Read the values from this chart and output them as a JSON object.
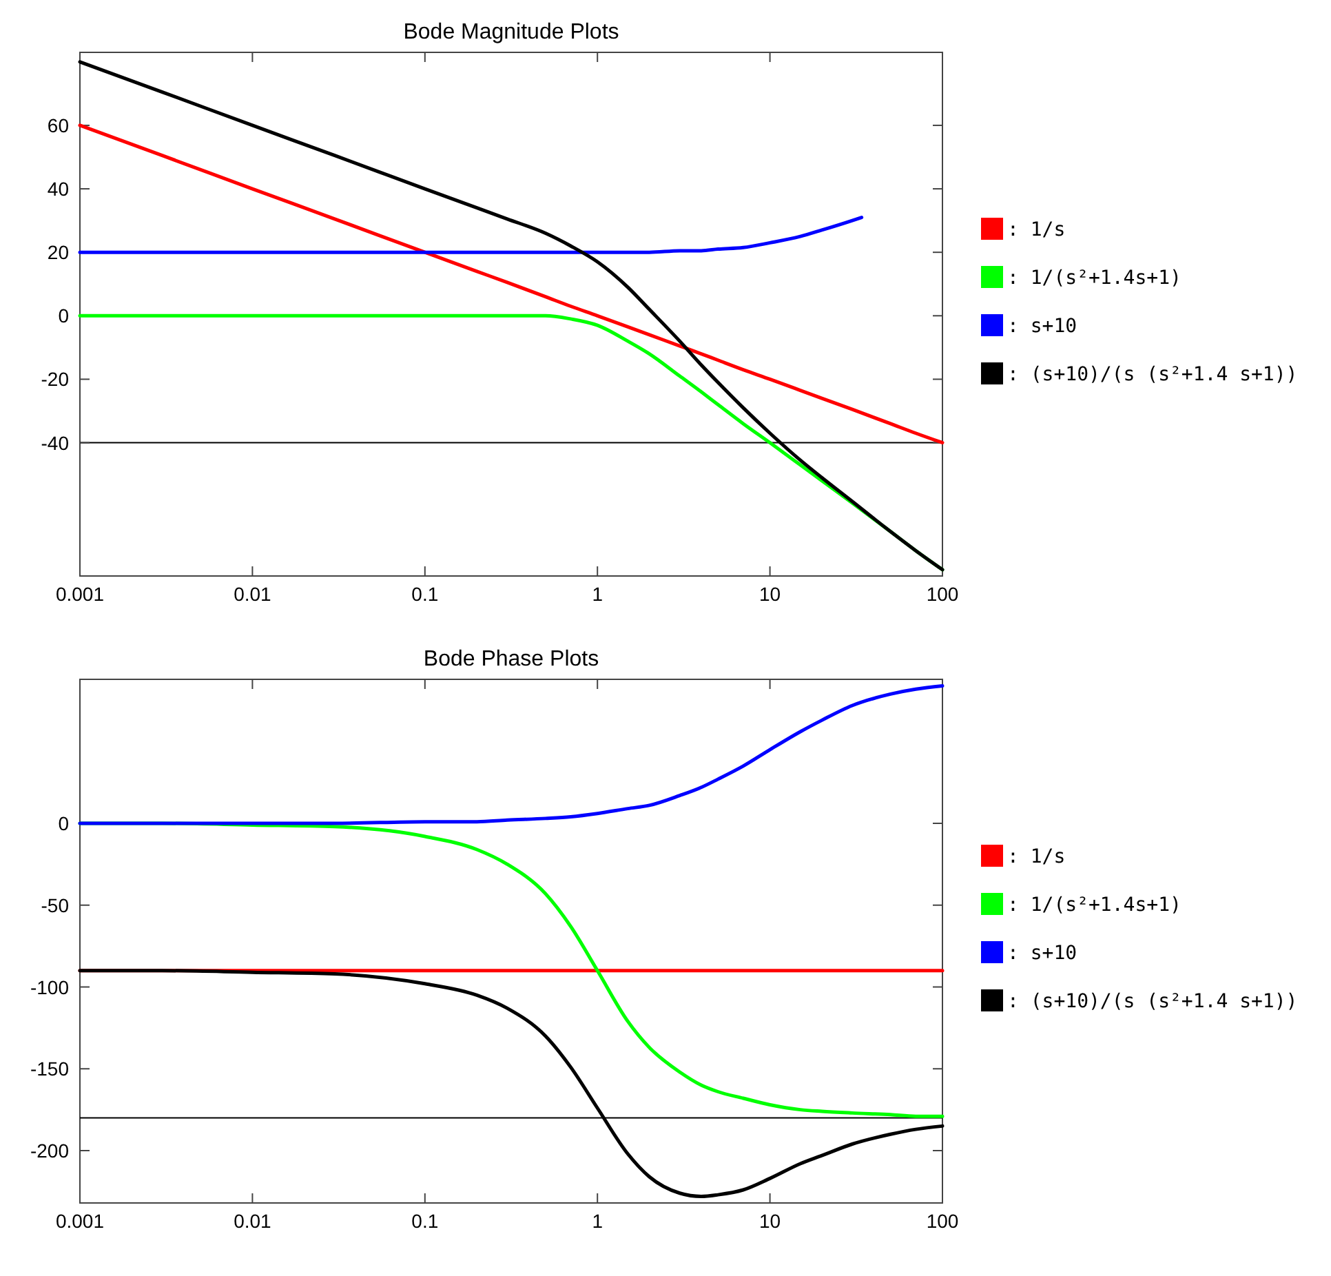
{
  "chart_data": [
    {
      "type": "line",
      "title": "Bode Magnitude Plots",
      "log": "x",
      "legend": "right",
      "x": [
        0.001,
        0.003,
        0.01,
        0.03,
        0.1,
        0.2,
        0.3,
        0.5,
        0.7,
        1,
        1.5,
        2,
        3,
        4,
        5,
        7,
        10,
        15,
        20,
        30,
        50,
        70,
        100
      ],
      "xlim": [
        0.001,
        100
      ],
      "ylim": [
        -82,
        83
      ],
      "xticks": [
        0.001,
        0.01,
        0.1,
        1,
        10,
        100
      ],
      "yticks": [
        60,
        40,
        20,
        0,
        -20,
        -40
      ],
      "ref_lines": [
        {
          "axis": "y",
          "value": -40,
          "color": "#000000"
        }
      ],
      "series": [
        {
          "name": ": 1/s",
          "color": "#ff0000",
          "values": [
            60,
            50.5,
            40,
            30.5,
            20,
            14,
            10.5,
            6,
            3,
            0,
            -3.5,
            -6,
            -9.5,
            -12,
            -14,
            -17,
            -20,
            -23.5,
            -26,
            -29.5,
            -34,
            -37,
            -40
          ]
        },
        {
          "name": ": 1/(s²+1.4s+1)",
          "color": "#00ff00",
          "values": [
            0,
            0,
            0,
            0,
            0,
            0,
            0,
            0,
            -1,
            -3,
            -8,
            -12,
            -19,
            -24,
            -28,
            -34,
            -40,
            -47,
            -52,
            -59,
            -68,
            -74,
            -80
          ]
        },
        {
          "name": ": s+10",
          "color": "#0000ff",
          "x": [
            0.001,
            0.01,
            0.1,
            0.5,
            1,
            1.5,
            2,
            3,
            4,
            5,
            7,
            10,
            15,
            20,
            30,
            34
          ],
          "values": [
            20,
            20,
            20,
            20,
            20,
            20,
            20,
            20.5,
            20.5,
            21,
            21.5,
            23,
            25,
            27,
            30,
            31
          ]
        },
        {
          "name": ": (s+10)/(s (s²+1.4 s+1))",
          "color": "#000000",
          "values": [
            80,
            70.5,
            60,
            50.5,
            40,
            34,
            30.5,
            26,
            22,
            17,
            9,
            2,
            -8,
            -15.5,
            -21,
            -29,
            -37,
            -45.5,
            -51,
            -58.5,
            -68,
            -74,
            -80
          ]
        }
      ]
    },
    {
      "type": "line",
      "title": "Bode Phase Plots",
      "log": "x",
      "legend": "right",
      "x": [
        0.001,
        0.003,
        0.01,
        0.03,
        0.1,
        0.2,
        0.3,
        0.5,
        0.7,
        1,
        1.5,
        2,
        3,
        4,
        5,
        7,
        10,
        15,
        20,
        30,
        50,
        70,
        100
      ],
      "xlim": [
        0.001,
        100
      ],
      "ylim": [
        -232,
        88
      ],
      "xticks": [
        0.001,
        0.01,
        0.1,
        1,
        10,
        100
      ],
      "yticks": [
        0,
        -50,
        -100,
        -150,
        -200
      ],
      "ref_lines": [
        {
          "axis": "y",
          "value": -180,
          "color": "#000000"
        }
      ],
      "series": [
        {
          "name": ": 1/s",
          "color": "#ff0000",
          "values": [
            -90,
            -90,
            -90,
            -90,
            -90,
            -90,
            -90,
            -90,
            -90,
            -90,
            -90,
            -90,
            -90,
            -90,
            -90,
            -90,
            -90,
            -90,
            -90,
            -90,
            -90,
            -90,
            -90
          ]
        },
        {
          "name": ": 1/(s²+1.4s+1)",
          "color": "#00ff00",
          "values": [
            0,
            0,
            -1,
            -2,
            -8,
            -16,
            -25,
            -43,
            -63,
            -90,
            -121,
            -137,
            -152,
            -160,
            -164,
            -168,
            -172,
            -175,
            -176,
            -177,
            -178,
            -179,
            -179
          ]
        },
        {
          "name": ": s+10",
          "color": "#0000ff",
          "values": [
            0,
            0,
            0,
            0,
            1,
            1,
            2,
            3,
            4,
            6,
            9,
            11,
            17,
            22,
            27,
            35,
            45,
            56,
            63,
            72,
            79,
            82,
            84
          ]
        },
        {
          "name": ": (s+10)/(s (s²+1.4 s+1))",
          "color": "#000000",
          "values": [
            -90,
            -90,
            -91,
            -92,
            -98,
            -105,
            -113,
            -130,
            -149,
            -174,
            -202,
            -216,
            -226,
            -228,
            -227,
            -224,
            -217,
            -208,
            -203,
            -196,
            -190,
            -187,
            -185
          ]
        }
      ]
    }
  ]
}
